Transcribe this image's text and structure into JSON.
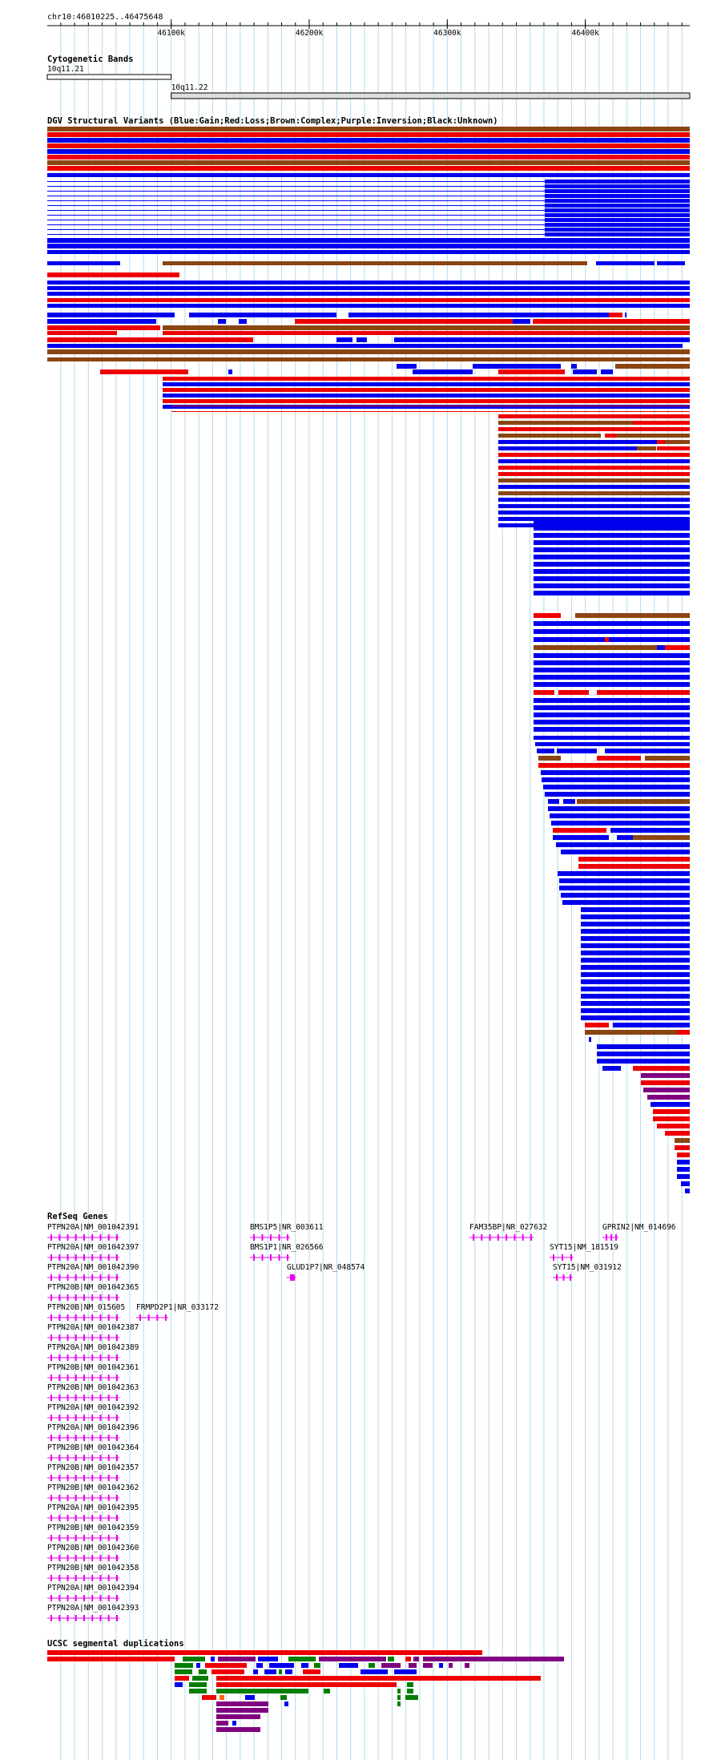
{
  "region": "chr10:46010225..46475648",
  "ruler": {
    "start": 46010225,
    "end": 46475648,
    "ticks": [
      {
        "value": 46100000,
        "label": "46100k"
      },
      {
        "value": 46200000,
        "label": "46200k"
      },
      {
        "value": 46300000,
        "label": "46300k"
      },
      {
        "value": 46400000,
        "label": "46400k"
      }
    ]
  },
  "tracks": {
    "cytobands": {
      "title": "Cytogenetic Bands",
      "bands": [
        {
          "name": "10q11.21",
          "start": 46010225,
          "end": 46100000
        },
        {
          "name": "10q11.22",
          "start": 46100000,
          "end": 46475648
        }
      ]
    },
    "dgv": {
      "title": "DGV Structural Variants (Blue:Gain;Red:Loss;Brown:Complex;Purple:Inversion;Black:Unknown)",
      "colors": {
        "gain": "#0000ee",
        "loss": "#ee0000",
        "complex": "#8b4513",
        "inversion": "#800080",
        "unknown": "#000000"
      }
    },
    "refseq": {
      "title": "RefSeq Genes",
      "color": "#ee00ee",
      "genes": [
        "PTPN20A|NM_001042391",
        "PTPN20A|NM_001042397",
        "PTPN20A|NM_001042390",
        "PTPN20B|NM_001042365",
        "PTPN20B|NM_015605",
        "PTPN20A|NM_001042387",
        "PTPN20A|NM_001042389",
        "PTPN20B|NM_001042361",
        "PTPN20B|NM_001042363",
        "PTPN20A|NM_001042392",
        "PTPN20A|NM_001042396",
        "PTPN20B|NM_001042364",
        "PTPN20B|NM_001042357",
        "PTPN20B|NM_001042362",
        "PTPN20A|NM_001042395",
        "PTPN20B|NM_001042359",
        "PTPN20B|NM_001042360",
        "PTPN20B|NM_001042358",
        "PTPN20A|NM_001042394",
        "PTPN20A|NM_001042393",
        "FRMPD2P1|NR_033172",
        "BMS1P5|NR_003611",
        "BMS1P1|NR_026566",
        "GLUD1P7|NR_048574",
        "FAM35BP|NR_027632",
        "GPRIN2|NM_014696",
        "SYT15|NM_181519",
        "SYT15|NM_031912"
      ]
    },
    "segdup": {
      "title": "UCSC segmental duplications"
    }
  }
}
